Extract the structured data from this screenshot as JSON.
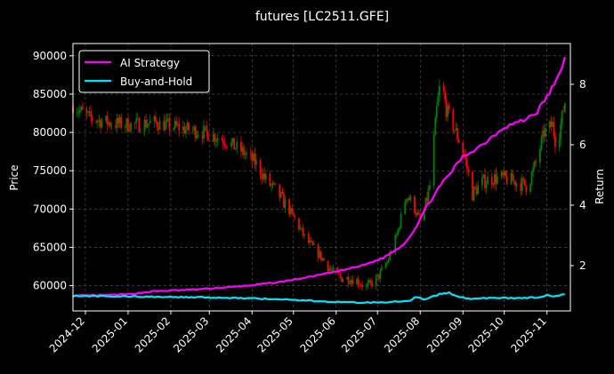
{
  "chart_data": {
    "type": "line",
    "title": "futures [LC2511.GFE]",
    "ylabel": "Price",
    "y2label": "Return",
    "ylim": [
      56700,
      91600
    ],
    "y2lim": [
      0.5,
      9.35
    ],
    "yticks": [
      60000,
      65000,
      70000,
      75000,
      80000,
      85000,
      90000
    ],
    "y2ticks": [
      2,
      4,
      6,
      8
    ],
    "xrange": [
      "2024-11-22",
      "2025-11-18"
    ],
    "xticks": [
      {
        "date": "2024-12-01",
        "label": "2024-12"
      },
      {
        "date": "2025-01-01",
        "label": "2025-01"
      },
      {
        "date": "2025-02-01",
        "label": "2025-02"
      },
      {
        "date": "2025-03-01",
        "label": "2025-03"
      },
      {
        "date": "2025-04-01",
        "label": "2025-04"
      },
      {
        "date": "2025-05-01",
        "label": "2025-05"
      },
      {
        "date": "2025-06-01",
        "label": "2025-06"
      },
      {
        "date": "2025-07-01",
        "label": "2025-07"
      },
      {
        "date": "2025-08-01",
        "label": "2025-08"
      },
      {
        "date": "2025-09-01",
        "label": "2025-09"
      },
      {
        "date": "2025-10-01",
        "label": "2025-10"
      },
      {
        "date": "2025-11-01",
        "label": "2025-11"
      }
    ],
    "grid": true,
    "legend_position": "top-left",
    "colors": {
      "up": "#008000",
      "down": "#ff0000",
      "ai": "#ff00ff",
      "bh": "#00e5ff"
    },
    "price_path": [
      [
        "2024-11-22",
        83500
      ],
      [
        "2024-12-05",
        81800
      ],
      [
        "2024-12-20",
        81200
      ],
      [
        "2025-01-05",
        81000
      ],
      [
        "2025-01-20",
        81300
      ],
      [
        "2025-02-10",
        80500
      ],
      [
        "2025-02-25",
        80000
      ],
      [
        "2025-03-10",
        79200
      ],
      [
        "2025-03-25",
        77500
      ],
      [
        "2025-04-05",
        75800
      ],
      [
        "2025-04-10",
        74000
      ],
      [
        "2025-04-20",
        72000
      ],
      [
        "2025-05-01",
        69000
      ],
      [
        "2025-05-10",
        66000
      ],
      [
        "2025-05-20",
        64000
      ],
      [
        "2025-05-28",
        62000
      ],
      [
        "2025-06-05",
        61000
      ],
      [
        "2025-06-15",
        60800
      ],
      [
        "2025-06-23",
        59800
      ],
      [
        "2025-07-01",
        61000
      ],
      [
        "2025-07-08",
        63000
      ],
      [
        "2025-07-15",
        66500
      ],
      [
        "2025-07-22",
        72000
      ],
      [
        "2025-07-28",
        70000
      ],
      [
        "2025-08-02",
        68000
      ],
      [
        "2025-08-08",
        73000
      ],
      [
        "2025-08-13",
        83000
      ],
      [
        "2025-08-16",
        87000
      ],
      [
        "2025-08-20",
        83000
      ],
      [
        "2025-08-27",
        80000
      ],
      [
        "2025-09-02",
        77000
      ],
      [
        "2025-09-08",
        72000
      ],
      [
        "2025-09-15",
        73500
      ],
      [
        "2025-09-22",
        74000
      ],
      [
        "2025-10-01",
        74000
      ],
      [
        "2025-10-10",
        73500
      ],
      [
        "2025-10-18",
        73000
      ],
      [
        "2025-10-24",
        76000
      ],
      [
        "2025-10-30",
        80000
      ],
      [
        "2025-11-05",
        81000
      ],
      [
        "2025-11-08",
        78000
      ],
      [
        "2025-11-14",
        84000
      ]
    ],
    "series": [
      {
        "name": "AI Strategy",
        "points": [
          [
            "2024-11-22",
            1.0
          ],
          [
            "2024-12-15",
            1.02
          ],
          [
            "2025-01-01",
            1.05
          ],
          [
            "2025-01-20",
            1.15
          ],
          [
            "2025-02-15",
            1.2
          ],
          [
            "2025-03-15",
            1.28
          ],
          [
            "2025-04-01",
            1.35
          ],
          [
            "2025-04-20",
            1.45
          ],
          [
            "2025-05-10",
            1.6
          ],
          [
            "2025-06-01",
            1.8
          ],
          [
            "2025-06-20",
            2.0
          ],
          [
            "2025-07-05",
            2.25
          ],
          [
            "2025-07-20",
            2.7
          ],
          [
            "2025-07-28",
            3.2
          ],
          [
            "2025-08-05",
            3.9
          ],
          [
            "2025-08-12",
            4.4
          ],
          [
            "2025-08-20",
            4.9
          ],
          [
            "2025-09-01",
            5.6
          ],
          [
            "2025-09-15",
            6.0
          ],
          [
            "2025-10-01",
            6.6
          ],
          [
            "2025-10-15",
            6.8
          ],
          [
            "2025-10-25",
            7.1
          ],
          [
            "2025-11-01",
            7.6
          ],
          [
            "2025-11-08",
            8.1
          ],
          [
            "2025-11-14",
            8.9
          ]
        ]
      },
      {
        "name": "Buy-and-Hold",
        "points": [
          [
            "2024-11-22",
            1.0
          ],
          [
            "2024-12-20",
            0.98
          ],
          [
            "2025-01-20",
            0.97
          ],
          [
            "2025-02-20",
            0.95
          ],
          [
            "2025-03-20",
            0.93
          ],
          [
            "2025-04-20",
            0.89
          ],
          [
            "2025-05-20",
            0.82
          ],
          [
            "2025-06-20",
            0.77
          ],
          [
            "2025-07-10",
            0.8
          ],
          [
            "2025-07-25",
            0.85
          ],
          [
            "2025-07-28",
            0.95
          ],
          [
            "2025-08-05",
            0.88
          ],
          [
            "2025-08-15",
            1.05
          ],
          [
            "2025-08-22",
            1.1
          ],
          [
            "2025-08-28",
            0.98
          ],
          [
            "2025-09-05",
            0.9
          ],
          [
            "2025-09-20",
            0.93
          ],
          [
            "2025-10-10",
            0.92
          ],
          [
            "2025-10-25",
            0.95
          ],
          [
            "2025-11-01",
            1.02
          ],
          [
            "2025-11-08",
            0.98
          ],
          [
            "2025-11-14",
            1.05
          ]
        ]
      }
    ]
  }
}
